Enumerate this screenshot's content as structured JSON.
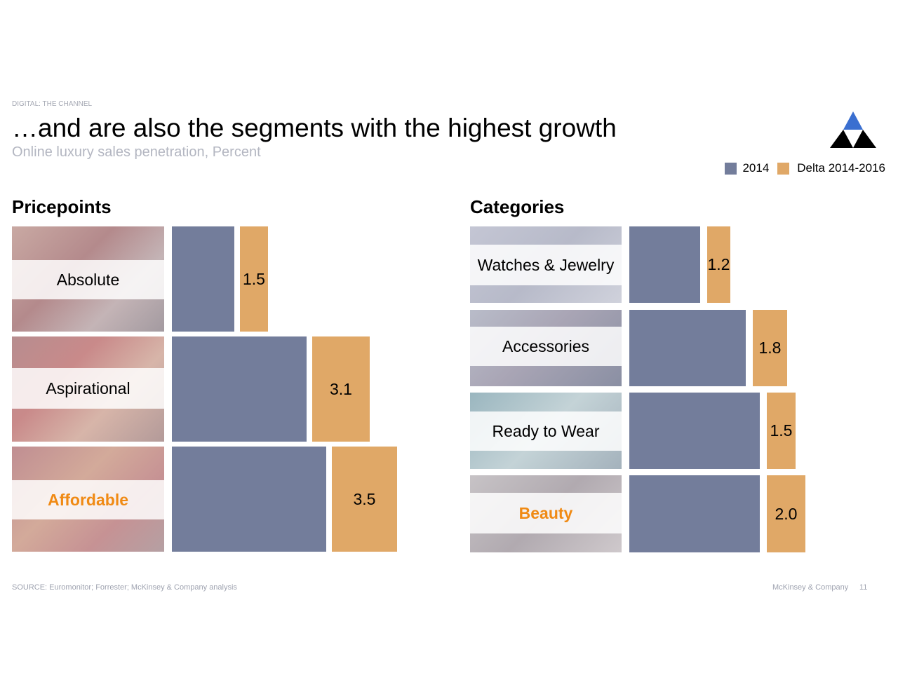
{
  "header": {
    "tracker": "DIGITAL: THE CHANNEL",
    "title": "…and are also the segments with the highest growth",
    "subtitle": "Online luxury sales penetration, Percent"
  },
  "legend": [
    {
      "label": "2014",
      "color": "#737d9b"
    },
    {
      "label": "Delta 2014-2016",
      "color": "#e0a867"
    }
  ],
  "colors": {
    "base": "#737d9b",
    "delta": "#e0a867",
    "highlight": "#f08a14"
  },
  "chart_data": [
    {
      "type": "bar",
      "title": "Pricepoints",
      "categories": [
        "Absolute",
        "Aspirational",
        "Affordable"
      ],
      "highlight": "Affordable",
      "series": [
        {
          "name": "2014",
          "values": [
            null,
            null,
            null
          ]
        },
        {
          "name": "Delta 2014-2016",
          "values": [
            1.5,
            3.1,
            3.5
          ]
        }
      ]
    },
    {
      "type": "bar",
      "title": "Categories",
      "categories": [
        "Watches & Jewelry",
        "Accessories",
        "Ready to Wear",
        "Beauty"
      ],
      "highlight": "Beauty",
      "series": [
        {
          "name": "2014",
          "values": [
            null,
            null,
            null,
            null
          ]
        },
        {
          "name": "Delta 2014-2016",
          "values": [
            1.2,
            1.8,
            1.5,
            2.0
          ]
        }
      ]
    }
  ],
  "footer": {
    "source": "SOURCE: Euromonitor; Forrester; McKinsey & Company analysis",
    "company": "McKinsey & Company",
    "page": "11"
  }
}
